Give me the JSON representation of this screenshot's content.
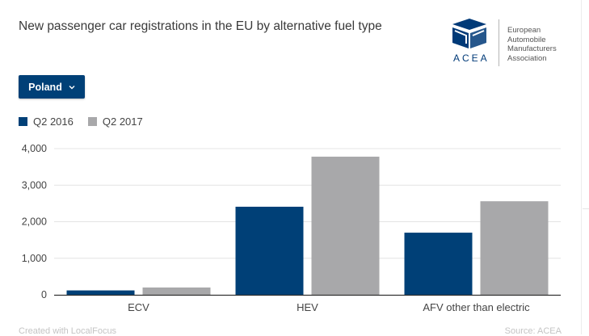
{
  "title": "New passenger car registrations in the EU by alternative fuel type",
  "logo": {
    "wordmark": "ACEA",
    "lines": [
      "European",
      "Automobile",
      "Manufacturers",
      "Association"
    ],
    "color": "#003a78"
  },
  "dropdown": {
    "selected": "Poland",
    "icon": "chevron-down-icon"
  },
  "footer": {
    "left": "Created with LocalFocus",
    "right": "Source: ACEA"
  },
  "colors": {
    "q2_2016": "#004077",
    "q2_2017": "#a8a8aa",
    "grid": "#e4e4e4",
    "axis": "#333333"
  },
  "chart_data": {
    "type": "bar",
    "title": "New passenger car registrations in the EU by alternative fuel type",
    "categories": [
      "ECV",
      "HEV",
      "AFV other than electric"
    ],
    "series": [
      {
        "name": "Q2 2016",
        "values": [
          120,
          2410,
          1700
        ]
      },
      {
        "name": "Q2 2017",
        "values": [
          200,
          3780,
          2560
        ]
      }
    ],
    "ylim": [
      0,
      4000
    ],
    "yticks": [
      0,
      1000,
      2000,
      3000,
      4000
    ],
    "ytick_labels": [
      "0",
      "1,000",
      "2,000",
      "3,000",
      "4,000"
    ],
    "grid": true,
    "legend": "top-left",
    "xlabel": "",
    "ylabel": ""
  }
}
